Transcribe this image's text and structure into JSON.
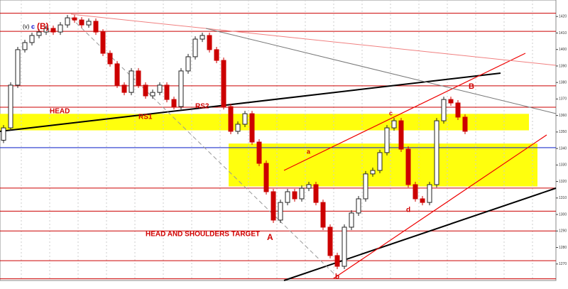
{
  "chart_data": {
    "type": "candlestick",
    "open": [
      1345,
      1352.5,
      1378.4,
      1399.9,
      1404.2,
      1408.5,
      1410.6,
      1412.8,
      1410.6,
      1414.9,
      1419.2,
      1417.9,
      1414.9,
      1417.1,
      1410.6,
      1397.7,
      1391.3,
      1378.4,
      1374.0,
      1387.0,
      1378.4,
      1371.9,
      1374.0,
      1378.4,
      1369.7,
      1365.4,
      1387.0,
      1395.6,
      1406.3,
      1408.5,
      1399.9,
      1393.4,
      1365.4,
      1350.4,
      1354.7,
      1361.1,
      1343.9,
      1331.0,
      1313.8,
      1296.6,
      1307.3,
      1313.8,
      1309.5,
      1315.9,
      1318.1,
      1307.3,
      1292.3,
      1275.1,
      1268.6,
      1292.3,
      1300.9,
      1309.5,
      1324.6,
      1326.7,
      1337.5,
      1352.5,
      1356.8,
      1339.6,
      1318.1,
      1309.5,
      1307.3,
      1318.1,
      1356.8,
      1369.7,
      1367.6,
      1359.0
    ],
    "close": [
      1352.5,
      1378.4,
      1399.9,
      1404.2,
      1408.5,
      1410.6,
      1412.8,
      1410.6,
      1414.9,
      1419.2,
      1417.9,
      1414.9,
      1417.1,
      1410.6,
      1397.7,
      1391.3,
      1378.4,
      1374.0,
      1387.0,
      1378.4,
      1371.9,
      1374.0,
      1378.4,
      1369.7,
      1365.4,
      1387.0,
      1395.6,
      1406.3,
      1408.5,
      1399.9,
      1393.4,
      1365.4,
      1350.4,
      1354.7,
      1361.1,
      1343.9,
      1331.0,
      1313.8,
      1296.6,
      1307.3,
      1313.8,
      1309.5,
      1315.9,
      1318.1,
      1307.3,
      1292.3,
      1275.1,
      1268.6,
      1292.3,
      1300.9,
      1309.5,
      1324.6,
      1326.7,
      1337.5,
      1352.5,
      1356.8,
      1339.6,
      1318.1,
      1309.5,
      1307.3,
      1318.1,
      1356.8,
      1369.7,
      1367.6,
      1359.0,
      1350.4
    ],
    "up_color": "#222222",
    "down_color": "#cc0000",
    "ylim": [
      1260,
      1430
    ],
    "yticks": [
      1270,
      1280,
      1290,
      1300,
      1310,
      1320,
      1330,
      1340,
      1350,
      1360,
      1370,
      1380,
      1390,
      1400,
      1410,
      1420
    ],
    "levels": [
      1422,
      1411,
      1378,
      1365,
      1316,
      1302,
      1290,
      1272,
      1261
    ],
    "level_color": "#cc0000",
    "support_line": 1340.5,
    "zones": [
      [
        1351,
        1361
      ],
      [
        1317,
        1343
      ]
    ],
    "zone_color": "#ffff00",
    "annotations": {
      "head": "HEAD",
      "rs1": "RS1",
      "rs2": "RS2",
      "target": "HEAD AND SHOULDERS TARGET",
      "wave_B_big": "(B)",
      "wave_c_top": "c",
      "wave_v": "(v)",
      "wave_A": "A",
      "wave_B": "B",
      "wave_a": "a",
      "wave_b": "b",
      "wave_c": "c",
      "wave_d": "d"
    }
  }
}
